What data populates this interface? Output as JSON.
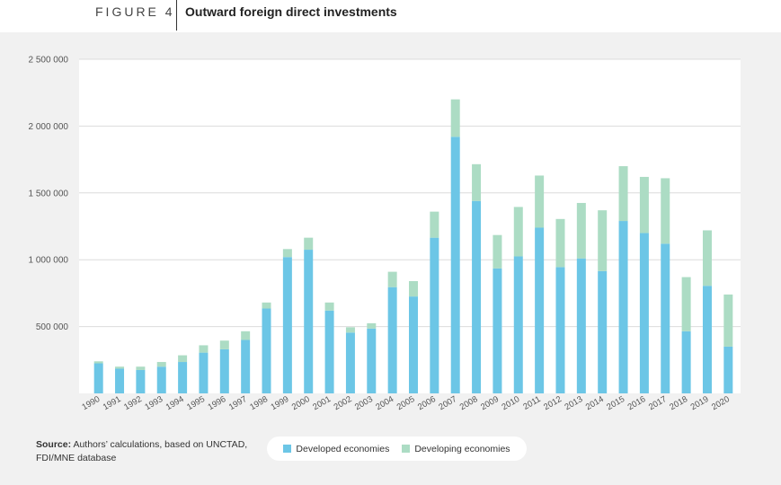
{
  "header": {
    "figure_label": "FIGURE 4",
    "title": "Outward foreign direct investments"
  },
  "source": {
    "label": "Source:",
    "text": "Authors’ calculations, based on UNCTAD, FDI/MNE database"
  },
  "legend": {
    "developed": "Developed economies",
    "developing": "Developing economies"
  },
  "colors": {
    "developed": "#6cc6e6",
    "developing": "#acdcc4",
    "grid": "#dcdcdc",
    "panel": "#f1f1f1",
    "plot": "#ffffff"
  },
  "chart_data": {
    "type": "bar",
    "stacked": true,
    "title": "Outward foreign direct investments",
    "ylim": [
      0,
      2500000
    ],
    "yticks": [
      500000,
      1000000,
      1500000,
      2000000,
      2500000
    ],
    "ytick_labels": [
      "500 000",
      "1 000 000",
      "1 500 000",
      "2 000 000",
      "2 500 000"
    ],
    "grid": true,
    "legend_position": "bottom",
    "categories": [
      "1990",
      "1991",
      "1992",
      "1993",
      "1994",
      "1995",
      "1996",
      "1997",
      "1998",
      "1999",
      "2000",
      "2001",
      "2002",
      "2003",
      "2004",
      "2005",
      "2006",
      "2007",
      "2008",
      "2009",
      "2010",
      "2011",
      "2012",
      "2013",
      "2014",
      "2015",
      "2016",
      "2017",
      "2018",
      "2019",
      "2020"
    ],
    "series": [
      {
        "name": "Developed economies",
        "values": [
          225000,
          185000,
          175000,
          200000,
          235000,
          305000,
          330000,
          400000,
          635000,
          1020000,
          1075000,
          620000,
          455000,
          485000,
          795000,
          725000,
          1165000,
          1920000,
          1440000,
          935000,
          1025000,
          1240000,
          945000,
          1010000,
          915000,
          1290000,
          1200000,
          1120000,
          465000,
          805000,
          350000
        ]
      },
      {
        "name": "Developing economies",
        "values": [
          15000,
          15000,
          25000,
          35000,
          50000,
          55000,
          65000,
          65000,
          45000,
          60000,
          90000,
          60000,
          40000,
          40000,
          115000,
          115000,
          195000,
          280000,
          275000,
          250000,
          370000,
          390000,
          360000,
          415000,
          455000,
          410000,
          420000,
          490000,
          405000,
          415000,
          390000
        ]
      }
    ]
  }
}
